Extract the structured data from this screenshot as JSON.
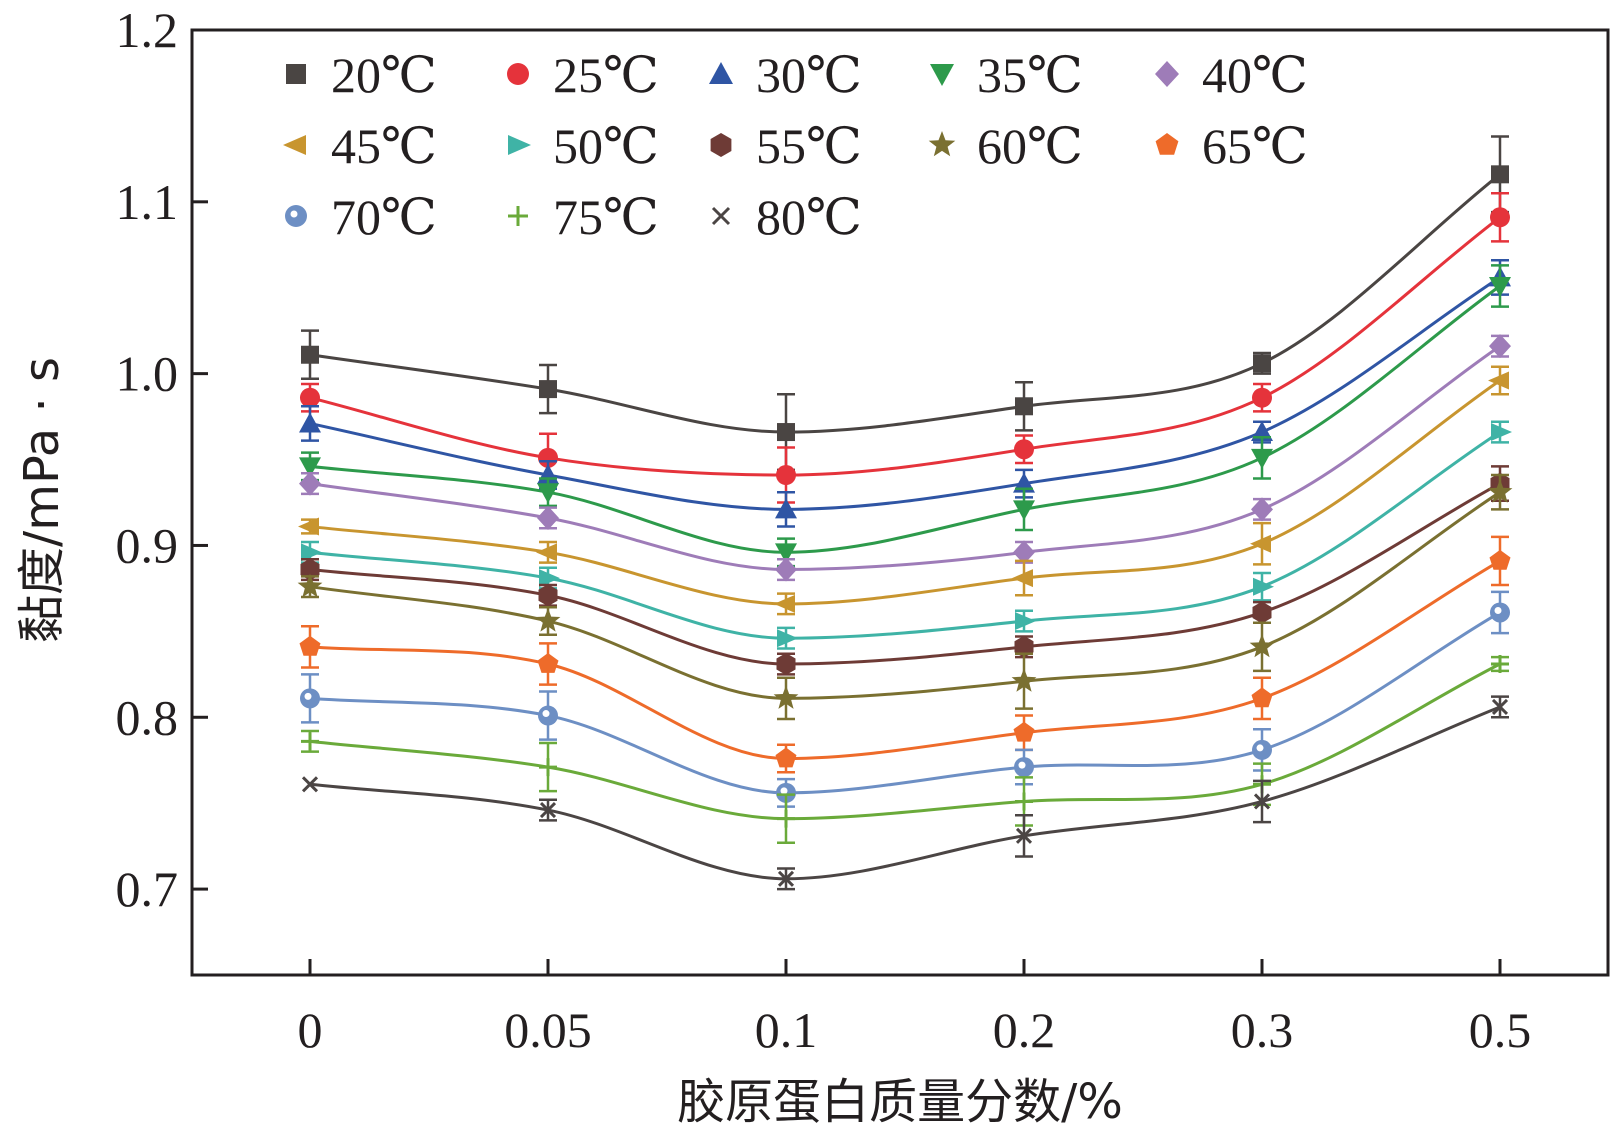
{
  "chart_data": {
    "type": "line",
    "title": "",
    "xlabel": "胶原蛋白质量分数/%",
    "ylabel": "黏度/mPa · s",
    "categories": [
      "0",
      "0.05",
      "0.1",
      "0.2",
      "0.3",
      "0.5"
    ],
    "ylim": [
      0.65,
      1.2
    ],
    "yticks": [
      "0.7",
      "0.8",
      "0.9",
      "1.0",
      "1.1",
      "1.2"
    ],
    "yticks_values": [
      0.7,
      0.8,
      0.9,
      1.0,
      1.1,
      1.2
    ],
    "smooth": true,
    "error_bars": true,
    "legend_position": "top-left",
    "series": [
      {
        "name": "20℃",
        "color": "#4a4543",
        "marker": "square",
        "values": [
          1.011,
          0.991,
          0.966,
          0.981,
          1.006,
          1.116
        ],
        "errors": [
          0.014,
          0.014,
          0.022,
          0.014,
          0.006,
          0.022
        ]
      },
      {
        "name": "25℃",
        "color": "#e5333b",
        "marker": "circle",
        "values": [
          0.986,
          0.951,
          0.941,
          0.956,
          0.986,
          1.091
        ],
        "errors": [
          0.008,
          0.014,
          0.016,
          0.008,
          0.008,
          0.014
        ]
      },
      {
        "name": "30℃",
        "color": "#2f55a4",
        "marker": "triangle-up",
        "values": [
          0.971,
          0.941,
          0.921,
          0.936,
          0.966,
          1.056
        ],
        "errors": [
          0.01,
          0.008,
          0.01,
          0.008,
          0.006,
          0.01
        ]
      },
      {
        "name": "35℃",
        "color": "#2d9a4b",
        "marker": "triangle-down",
        "values": [
          0.946,
          0.931,
          0.896,
          0.921,
          0.951,
          1.051
        ],
        "errors": [
          0.008,
          0.008,
          0.008,
          0.012,
          0.012,
          0.012
        ]
      },
      {
        "name": "40℃",
        "color": "#9e7cb8",
        "marker": "diamond",
        "values": [
          0.936,
          0.916,
          0.886,
          0.896,
          0.921,
          1.016
        ],
        "errors": [
          0.006,
          0.006,
          0.006,
          0.006,
          0.006,
          0.006
        ]
      },
      {
        "name": "45℃",
        "color": "#c8952f",
        "marker": "triangle-left",
        "values": [
          0.911,
          0.896,
          0.866,
          0.881,
          0.901,
          0.996
        ],
        "errors": [
          0.004,
          0.006,
          0.006,
          0.01,
          0.012,
          0.008
        ]
      },
      {
        "name": "50℃",
        "color": "#3fb3a6",
        "marker": "triangle-right",
        "values": [
          0.896,
          0.881,
          0.846,
          0.856,
          0.876,
          0.966
        ],
        "errors": [
          0.006,
          0.006,
          0.006,
          0.006,
          0.008,
          0.006
        ]
      },
      {
        "name": "55℃",
        "color": "#6e3b36",
        "marker": "hexagon",
        "values": [
          0.886,
          0.871,
          0.831,
          0.841,
          0.861,
          0.936
        ],
        "errors": [
          0.006,
          0.006,
          0.006,
          0.006,
          0.006,
          0.01
        ]
      },
      {
        "name": "60℃",
        "color": "#7a7031",
        "marker": "star",
        "values": [
          0.876,
          0.856,
          0.811,
          0.821,
          0.841,
          0.931
        ],
        "errors": [
          0.006,
          0.008,
          0.012,
          0.016,
          0.014,
          0.01
        ]
      },
      {
        "name": "65℃",
        "color": "#ee6b2a",
        "marker": "pentagon",
        "values": [
          0.841,
          0.831,
          0.776,
          0.791,
          0.811,
          0.891
        ],
        "errors": [
          0.012,
          0.012,
          0.008,
          0.01,
          0.012,
          0.014
        ]
      },
      {
        "name": "70℃",
        "color": "#6d8fc4",
        "marker": "circle-open",
        "values": [
          0.811,
          0.801,
          0.756,
          0.771,
          0.781,
          0.861
        ],
        "errors": [
          0.014,
          0.014,
          0.008,
          0.01,
          0.012,
          0.012
        ]
      },
      {
        "name": "75℃",
        "color": "#6aaa3a",
        "marker": "plus",
        "values": [
          0.786,
          0.771,
          0.741,
          0.751,
          0.761,
          0.831
        ],
        "errors": [
          0.006,
          0.014,
          0.014,
          0.014,
          0.012,
          0.004
        ]
      },
      {
        "name": "80℃",
        "color": "#4b4544",
        "marker": "cross",
        "values": [
          0.761,
          0.746,
          0.706,
          0.731,
          0.751,
          0.806
        ],
        "errors": [
          0.002,
          0.006,
          0.006,
          0.012,
          0.012,
          0.006
        ]
      }
    ]
  }
}
